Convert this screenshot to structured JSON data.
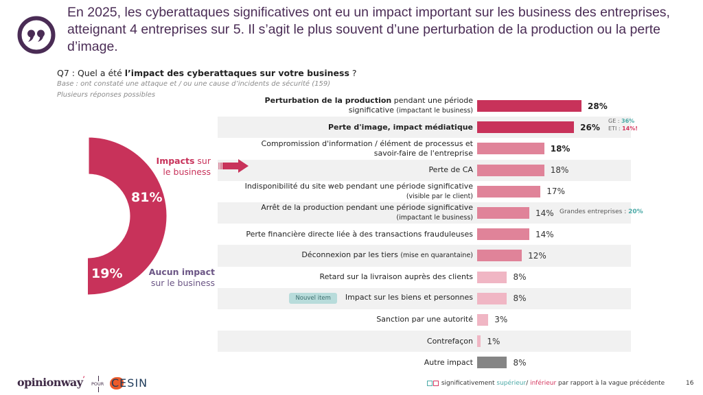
{
  "headline": "En 2025, les cyberattaques significatives ont eu un impact important sur les business des entreprises, atteignant 4 entreprises sur 5. Il s’agit le plus souvent d’une perturbation de la production ou la perte d’image.",
  "question": {
    "prefix": "Q7 : Quel a été ",
    "bold": "l’impact des cyberattaques sur votre business",
    "suffix": " ?",
    "base": "Base : ont constaté une attaque et / ou une cause d’incidents de sécurité (159)",
    "multi": "Plusieurs réponses possibles"
  },
  "colors": {
    "impact": "#c8325a",
    "none": "#6b5585",
    "strong": "#c8325a",
    "medium": "#e08399",
    "light": "#f0b6c4",
    "other": "#858585",
    "significant_up": "#4aa9a6",
    "significant_down": "#d5365f"
  },
  "chart_data": [
    {
      "type": "pie",
      "title": "",
      "slices": [
        {
          "name": "Impacts sur le business",
          "value": 81,
          "label": "81%",
          "color": "#c8325a"
        },
        {
          "name": "Aucun impact sur le business",
          "value": 19,
          "label": "19%",
          "color": "#6b5585"
        }
      ],
      "legend": {
        "impact_bold": "Impacts",
        "impact_rest": " sur le business",
        "none_bold": "Aucun impact",
        "none_rest": "sur le business"
      }
    },
    {
      "type": "bar",
      "orientation": "horizontal",
      "xlim": [
        0,
        30
      ],
      "categories": [
        "Perturbation de la production pendant une période significative (impactant le business)",
        "Perte d'image, impact médiatique",
        "Compromission d'information / élément de processus et savoir-faire de l'entreprise",
        "Perte de CA",
        "Indisponibilité du site web pendant une période significative (visible par le client)",
        "Arrêt de la production pendant une période significative (impactant le business)",
        "Perte financière directe liée à des transactions frauduleuses",
        "Déconnexion par les tiers (mise en quarantaine)",
        "Retard sur la livraison auprès des clients",
        "Impact sur les biens et personnes",
        "Sanction par une autorité",
        "Contrefaçon",
        "Autre impact"
      ],
      "values": [
        28,
        26,
        18,
        18,
        17,
        14,
        14,
        12,
        8,
        8,
        3,
        1,
        8
      ],
      "rows": [
        {
          "bold": "Perturbation de la production",
          "text": " pendant une période",
          "line2": "significative ",
          "small2": "(impactant le business)",
          "value": 28,
          "label": "28%",
          "tone": "strong",
          "bold_value": true
        },
        {
          "bold": "Perte d'image, impact médiatique",
          "text": "",
          "value": 26,
          "label": "26%",
          "tone": "strong",
          "bold_value": true
        },
        {
          "text": "Compromission d'information / élément de processus et",
          "line2": "savoir-faire de l'entreprise",
          "value": 18,
          "label": "18%",
          "tone": "medium",
          "bold_value": true
        },
        {
          "text": "Perte de CA",
          "value": 18,
          "label": "18%",
          "tone": "medium"
        },
        {
          "text": "Indisponibilité du site web pendant une période significative",
          "small2": "(visible par le client)",
          "value": 17,
          "label": "17%",
          "tone": "medium"
        },
        {
          "text": "Arrêt de la production pendant une période significative",
          "small2": "(impactant le business)",
          "value": 14,
          "label": "14%",
          "tone": "medium"
        },
        {
          "text": "Perte financière directe liée à des transactions frauduleuses",
          "value": 14,
          "label": "14%",
          "tone": "medium"
        },
        {
          "text": "Déconnexion par les tiers ",
          "small": "(mise en quarantaine)",
          "value": 12,
          "label": "12%",
          "tone": "medium"
        },
        {
          "text": "Retard sur la livraison auprès des clients",
          "value": 8,
          "label": "8%",
          "tone": "light"
        },
        {
          "text": "Impact sur les biens et personnes",
          "badge": "Nouvel item",
          "value": 8,
          "label": "8%",
          "tone": "light"
        },
        {
          "text": "Sanction par une autorité",
          "value": 3,
          "label": "3%",
          "tone": "light"
        },
        {
          "text": "Contrefaçon",
          "value": 1,
          "label": "1%",
          "tone": "light"
        },
        {
          "text": "Autre impact",
          "value": 8,
          "label": "8%",
          "tone": "other"
        }
      ],
      "annotations": {
        "ge_label": "GE : ",
        "ge_value": "36%",
        "eti_label": "ETI : ",
        "eti_value": "14%!",
        "grandes_label": "Grandes entreprises : ",
        "grandes_value": "20%"
      }
    }
  ],
  "footer": {
    "brand": "opinionway",
    "pour": "POUR",
    "client": "CESIN",
    "legend_text": " significativement ",
    "legend_up": "supérieur",
    "legend_slash": "/ ",
    "legend_down": "inférieur",
    "legend_rest": " par rapport à la vague précédente",
    "page": "16"
  }
}
